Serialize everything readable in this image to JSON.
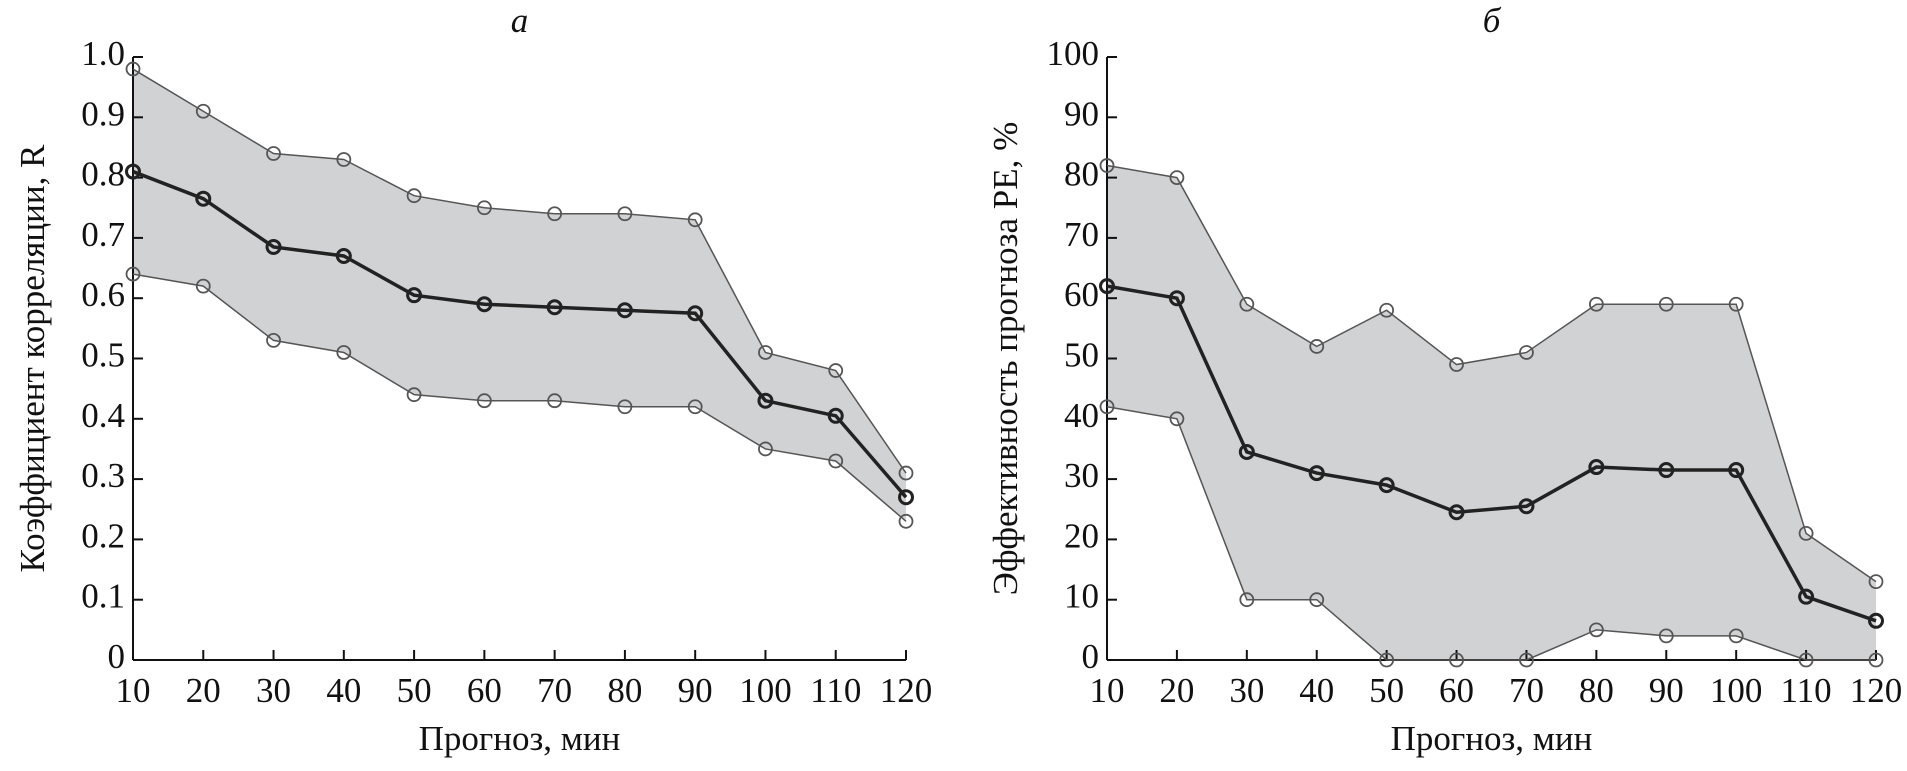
{
  "chart_data": [
    {
      "type": "line",
      "title": "а",
      "ylabel": "Коэффициент корреляции, R",
      "xlabel": "Прогноз, мин",
      "x": [
        10,
        20,
        30,
        40,
        50,
        60,
        70,
        80,
        90,
        100,
        110,
        120
      ],
      "fill_color": "#d1d2d4",
      "series": [
        {
          "color": "#555555",
          "values": [
            0.98,
            0.91,
            0.84,
            0.83,
            0.77,
            0.75,
            0.74,
            0.74,
            0.73,
            0.51,
            0.48,
            0.31
          ]
        },
        {
          "color": "#222222",
          "values": [
            0.81,
            0.765,
            0.685,
            0.67,
            0.605,
            0.59,
            0.585,
            0.58,
            0.575,
            0.43,
            0.405,
            0.27
          ]
        },
        {
          "color": "#555555",
          "values": [
            0.64,
            0.62,
            0.53,
            0.51,
            0.44,
            0.43,
            0.43,
            0.42,
            0.42,
            0.35,
            0.33,
            0.23
          ]
        }
      ],
      "xlim": [
        10,
        120
      ],
      "xticks": [
        10,
        20,
        30,
        40,
        50,
        60,
        70,
        80,
        90,
        100,
        110,
        120
      ],
      "ylim": [
        0,
        1
      ],
      "yticks": [
        0,
        0.1,
        0.2,
        0.3,
        0.4,
        0.5,
        0.6,
        0.7,
        0.8,
        0.9,
        {
          "value": 1,
          "label": "1.0"
        }
      ]
    },
    {
      "type": "line",
      "title": "б",
      "ylabel": "Эффективность прогноза PE, %",
      "xlabel": "Прогноз, мин",
      "x": [
        10,
        20,
        30,
        40,
        50,
        60,
        70,
        80,
        90,
        100,
        110,
        120
      ],
      "fill_color": "#d1d2d4",
      "series": [
        {
          "color": "#555555",
          "values": [
            82,
            80,
            59,
            52,
            58,
            49,
            51,
            59,
            59,
            59,
            21,
            13
          ]
        },
        {
          "color": "#222222",
          "values": [
            62,
            60,
            34.5,
            31,
            29,
            24.5,
            25.5,
            32,
            31.5,
            31.5,
            10.5,
            6.5
          ]
        },
        {
          "color": "#555555",
          "values": [
            42,
            40,
            10,
            10,
            0,
            0,
            0,
            5,
            4,
            4,
            0,
            0
          ]
        }
      ],
      "xlim": [
        10,
        120
      ],
      "xticks": [
        10,
        20,
        30,
        40,
        50,
        60,
        70,
        80,
        90,
        100,
        110,
        120
      ],
      "ylim": [
        0,
        100
      ],
      "yticks": [
        0,
        10,
        20,
        30,
        40,
        50,
        60,
        70,
        80,
        90,
        100
      ]
    }
  ]
}
